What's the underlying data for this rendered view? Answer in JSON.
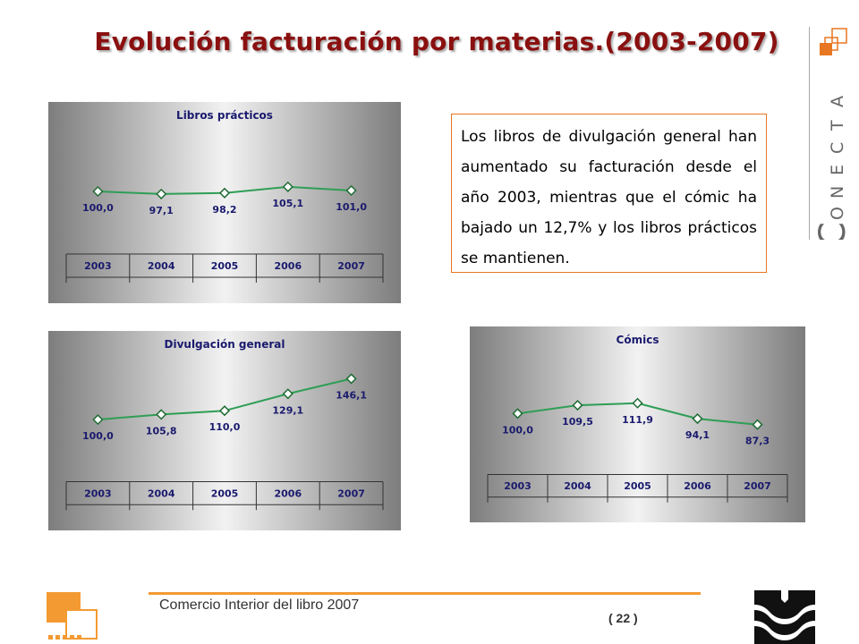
{
  "title": "Evolución facturación por materias.(2003-2007)",
  "brand": {
    "name": "CONECTA",
    "accent_color": "#e87722",
    "title_color": "#8a1010"
  },
  "text_box": {
    "text": "Los libros de divulgación general han aumentado su facturación desde el año 2003, mientras que el cómic ha bajado un 12,7% y los libros prácticos se mantienen."
  },
  "footer": {
    "text": "Comercio Interior del libro 2007",
    "page": "( 22 )"
  },
  "chart_data": [
    {
      "type": "line",
      "title": "Libros prácticos",
      "categories": [
        "2003",
        "2004",
        "2005",
        "2006",
        "2007"
      ],
      "values": [
        100.0,
        97.1,
        98.2,
        105.1,
        101.0
      ],
      "labels": [
        "100,0",
        "97,1",
        "98,2",
        "105,1",
        "101,0"
      ],
      "line_color": "#2e9e55"
    },
    {
      "type": "line",
      "title": "Divulgación general",
      "categories": [
        "2003",
        "2004",
        "2005",
        "2006",
        "2007"
      ],
      "values": [
        100.0,
        105.8,
        110.0,
        129.1,
        146.1
      ],
      "labels": [
        "100,0",
        "105,8",
        "110,0",
        "129,1",
        "146,1"
      ],
      "line_color": "#2e9e55"
    },
    {
      "type": "line",
      "title": "Cómics",
      "categories": [
        "2003",
        "2004",
        "2005",
        "2006",
        "2007"
      ],
      "values": [
        100.0,
        109.5,
        111.9,
        94.1,
        87.3
      ],
      "labels": [
        "100,0",
        "109,5",
        "111,9",
        "94,1",
        "87,3"
      ],
      "line_color": "#2e9e55"
    }
  ]
}
